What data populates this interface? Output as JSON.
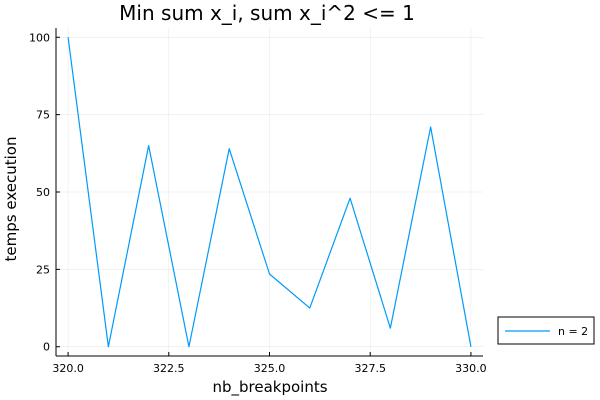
{
  "chart_data": {
    "type": "line",
    "title": "Min sum x_i, sum x_i^2 <= 1",
    "xlabel": "nb_breakpoints",
    "ylabel": "temps execution",
    "xlim": [
      319.7,
      330.3
    ],
    "ylim": [
      -3,
      103
    ],
    "xticks": [
      320.0,
      322.5,
      325.0,
      327.5,
      330.0
    ],
    "xtick_labels": [
      "320.0",
      "322.5",
      "325.0",
      "327.5",
      "330.0"
    ],
    "yticks": [
      0,
      25,
      50,
      75,
      100
    ],
    "ytick_labels": [
      "0",
      "25",
      "50",
      "75",
      "100"
    ],
    "grid": true,
    "legend_position": "outside-right-bottom",
    "x": [
      320,
      321,
      322,
      323,
      324,
      325,
      326,
      327,
      328,
      329,
      330
    ],
    "series": [
      {
        "name": "n = 2",
        "color": "#009AFA",
        "values": [
          100,
          0,
          65,
          0,
          64,
          23.5,
          12.5,
          48,
          6,
          71,
          0
        ]
      }
    ]
  }
}
